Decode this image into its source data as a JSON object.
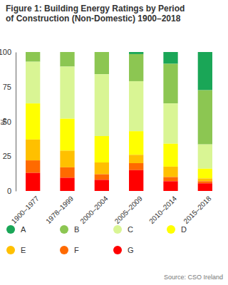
{
  "chart_data": {
    "type": "bar",
    "stacked": true,
    "title": "Figure 1: Building Energy Ratings by Period of Construction (Non-Domestic) 1900–2018",
    "y_label": "%",
    "source": "Source: CSO Ireland",
    "categories": [
      "1900–1977",
      "1978–1999",
      "2000–2004",
      "2005–2009",
      "2010–2014",
      "2015–2018"
    ],
    "series": [
      {
        "name": "A",
        "color": "#1aa657",
        "values": [
          0,
          0,
          0,
          1.5,
          8.5,
          27.5
        ]
      },
      {
        "name": "B",
        "color": "#8cc652",
        "values": [
          7,
          10.5,
          16,
          19.5,
          28.5,
          39
        ]
      },
      {
        "name": "C",
        "color": "#d9f594",
        "values": [
          30,
          37.5,
          44.5,
          36,
          29,
          17.5
        ]
      },
      {
        "name": "D",
        "color": "#ffff00",
        "values": [
          26,
          23,
          19,
          17,
          16.5,
          7
        ]
      },
      {
        "name": "E",
        "color": "#ffc000",
        "values": [
          15,
          12,
          8.5,
          6,
          7.5,
          2
        ]
      },
      {
        "name": "F",
        "color": "#ff6a00",
        "values": [
          9,
          7.5,
          4,
          5,
          3,
          1.5
        ]
      },
      {
        "name": "G",
        "color": "#ff0000",
        "values": [
          13,
          9.5,
          8,
          15,
          7,
          5.5
        ]
      }
    ],
    "ylim": [
      0,
      100
    ],
    "yticks": [
      0,
      25,
      50,
      75,
      100
    ],
    "grid": false,
    "legend": "bottom"
  }
}
